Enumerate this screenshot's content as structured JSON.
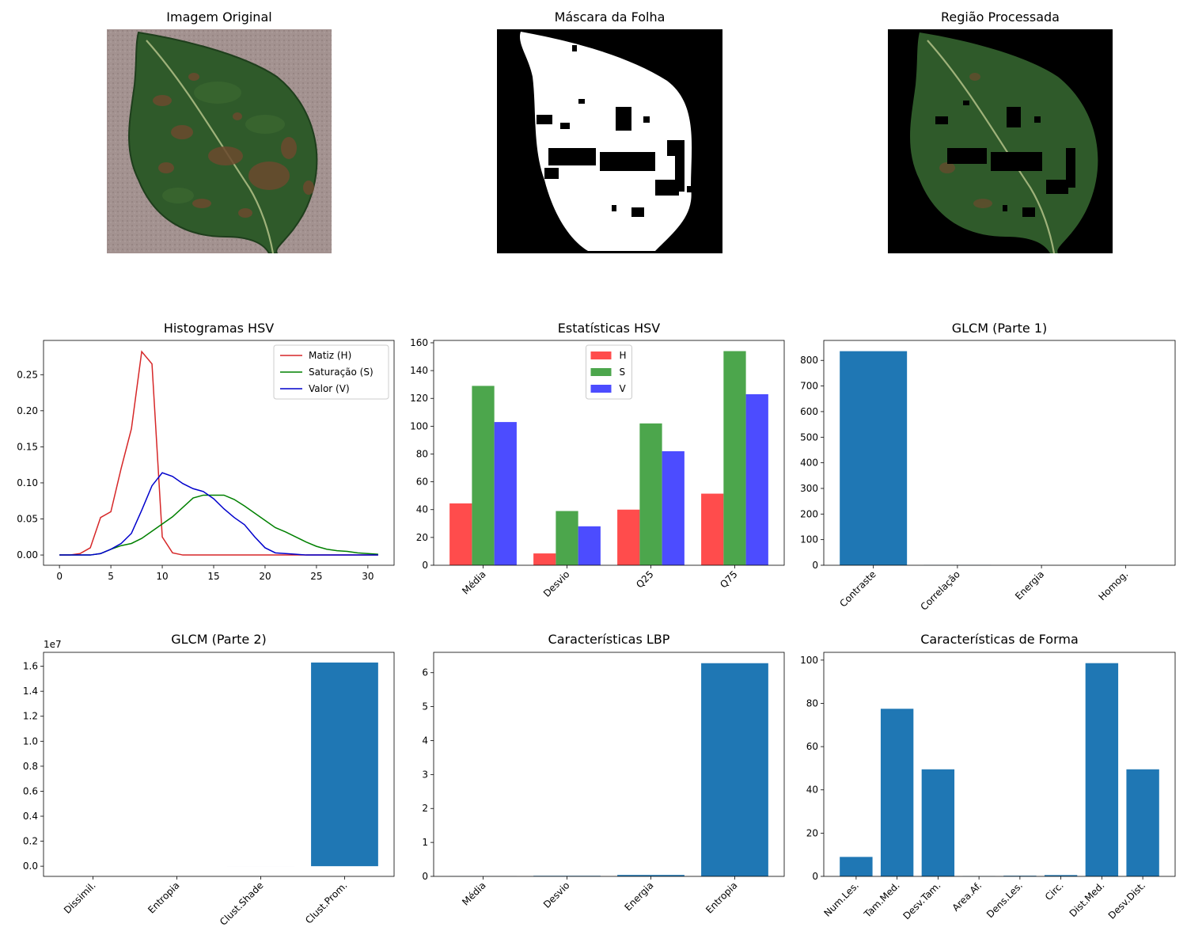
{
  "images": [
    {
      "title": "Imagem Original"
    },
    {
      "title": "Máscara da Folha"
    },
    {
      "title": "Região Processada"
    }
  ],
  "colors": {
    "leaf_dark": "#1f4a22",
    "leaf_mid": "#3e6b32",
    "lesion": "#6b4a2e",
    "background_stone": "#a2928f",
    "bar_default": "#1f77b4",
    "H": "#ff4c4c",
    "S": "#4ca64c",
    "V": "#4c4cff"
  },
  "chart_data": [
    {
      "type": "line",
      "title": "Histogramas HSV",
      "xlim": [
        -1.55,
        32.55
      ],
      "ylim": [
        -0.0142,
        0.2975
      ],
      "xticks": [
        0,
        5,
        10,
        15,
        20,
        25,
        30
      ],
      "yticks": [
        0.0,
        0.05,
        0.1,
        0.15,
        0.2,
        0.25
      ],
      "ytick_labels": [
        "0.00",
        "0.05",
        "0.10",
        "0.15",
        "0.20",
        "0.25"
      ],
      "legend": "top-right",
      "x": [
        0,
        1,
        2,
        3,
        4,
        5,
        6,
        7,
        8,
        9,
        10,
        11,
        12,
        13,
        14,
        15,
        16,
        17,
        18,
        19,
        20,
        21,
        22,
        23,
        24,
        25,
        26,
        27,
        28,
        29,
        30,
        31
      ],
      "series": [
        {
          "name": "Matiz (H)",
          "color": "#d62728",
          "values": [
            0,
            0,
            0.002,
            0.01,
            0.052,
            0.06,
            0.12,
            0.175,
            0.282,
            0.265,
            0.025,
            0.003,
            0,
            0,
            0,
            0,
            0,
            0,
            0,
            0,
            0,
            0,
            0,
            0,
            0,
            0,
            0,
            0,
            0,
            0,
            0,
            0
          ]
        },
        {
          "name": "Saturação (S)",
          "color": "#008000",
          "values": [
            0,
            0,
            0,
            0,
            0.002,
            0.008,
            0.013,
            0.016,
            0.023,
            0.033,
            0.043,
            0.053,
            0.066,
            0.079,
            0.083,
            0.083,
            0.083,
            0.077,
            0.068,
            0.058,
            0.048,
            0.038,
            0.032,
            0.025,
            0.018,
            0.012,
            0.008,
            0.006,
            0.005,
            0.003,
            0.002,
            0.001
          ]
        },
        {
          "name": "Valor (V)",
          "color": "#0000cc",
          "values": [
            0,
            0,
            0,
            0,
            0.002,
            0.008,
            0.016,
            0.03,
            0.062,
            0.096,
            0.114,
            0.109,
            0.099,
            0.092,
            0.088,
            0.078,
            0.064,
            0.052,
            0.042,
            0.025,
            0.01,
            0.003,
            0.002,
            0.001,
            0,
            0,
            0,
            0,
            0,
            0,
            0,
            0
          ]
        }
      ]
    },
    {
      "type": "bar",
      "title": "Estatísticas HSV",
      "categories": [
        "Média",
        "Desvio",
        "Q25",
        "Q75"
      ],
      "ylim": [
        0,
        161.7
      ],
      "yticks": [
        0,
        20,
        40,
        60,
        80,
        100,
        120,
        140,
        160
      ],
      "legend": "top-center",
      "series": [
        {
          "name": "H",
          "color": "#ff4c4c",
          "values": [
            44.5,
            8.5,
            40,
            51.5
          ]
        },
        {
          "name": "S",
          "color": "#4ca64c",
          "values": [
            129,
            39,
            102,
            154
          ]
        },
        {
          "name": "V",
          "color": "#4c4cff",
          "values": [
            103,
            28,
            82,
            123
          ]
        }
      ]
    },
    {
      "type": "bar",
      "title": "GLCM (Parte 1)",
      "categories": [
        "Contraste",
        "Correlação",
        "Energia",
        "Homog."
      ],
      "ylim": [
        0,
        878
      ],
      "yticks": [
        0,
        100,
        200,
        300,
        400,
        500,
        600,
        700,
        800
      ],
      "values": [
        836,
        0.8,
        0.03,
        0.2
      ]
    },
    {
      "type": "bar",
      "title": "GLCM (Parte 2)",
      "categories": [
        "Dissimil.",
        "Entropia",
        "Clust.Shade",
        "Clust.Prom."
      ],
      "ylim": [
        -0.0815,
        1.7115
      ],
      "yticks": [
        0.0,
        0.2,
        0.4,
        0.6,
        0.8,
        1.0,
        1.2,
        1.4,
        1.6
      ],
      "ytick_labels": [
        "0.0",
        "0.2",
        "0.4",
        "0.6",
        "0.8",
        "1.0",
        "1.2",
        "1.4",
        "1.6"
      ],
      "offset_text": "1e7",
      "values": [
        2.1e-06,
        7e-07,
        0.0001,
        1.63
      ]
    },
    {
      "type": "bar",
      "title": "Características LBP",
      "categories": [
        "Média",
        "Desvio",
        "Energia",
        "Entropia"
      ],
      "ylim": [
        0,
        6.6
      ],
      "yticks": [
        0,
        1,
        2,
        3,
        4,
        5,
        6
      ],
      "values": [
        0.0039,
        0.0165,
        0.042,
        6.28
      ]
    },
    {
      "type": "bar",
      "title": "Características de Forma",
      "categories": [
        "Num.Les.",
        "Tam.Med.",
        "Desv.Tam.",
        "Area.Af.",
        "Dens.Les.",
        "Circ.",
        "Dist.Med.",
        "Desv.Dist."
      ],
      "ylim": [
        0,
        103.6
      ],
      "yticks": [
        0,
        20,
        40,
        60,
        80,
        100
      ],
      "values": [
        9,
        77.5,
        49.5,
        0.1,
        0.3,
        0.6,
        98.6,
        49.5
      ]
    }
  ]
}
